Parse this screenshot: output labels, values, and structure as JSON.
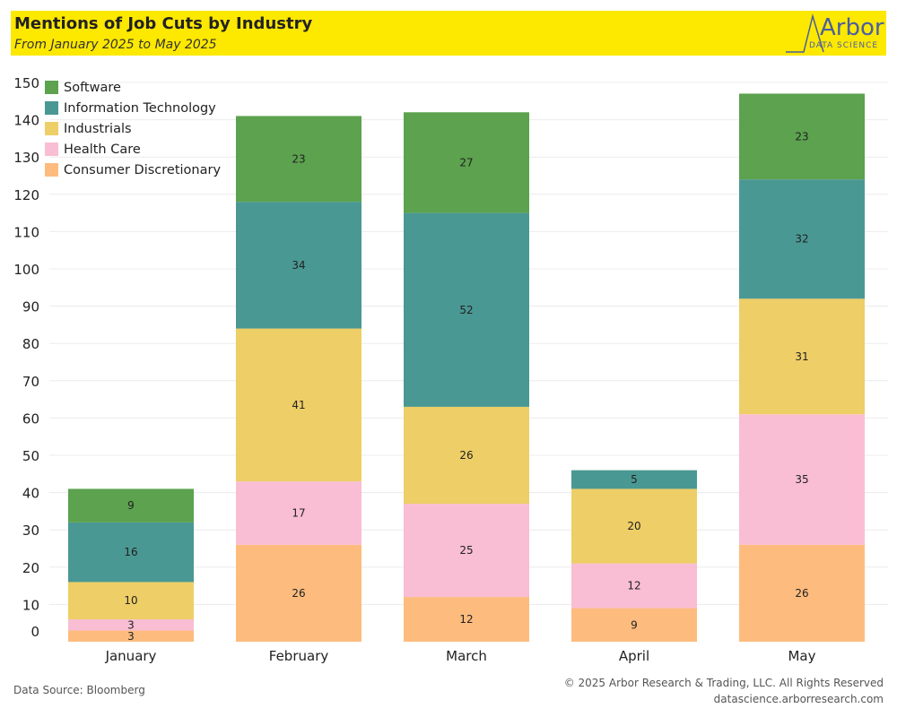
{
  "header": {
    "title": "Mentions of Job Cuts by Industry",
    "subtitle": "From January 2025 to May 2025",
    "logo_word": "Arbor",
    "logo_sub": "DATA SCIENCE",
    "background": "#fde800"
  },
  "footer": {
    "source": "Data Source: Bloomberg",
    "copyright": "© 2025 Arbor Research & Trading, LLC. All Rights Reserved",
    "website": "datascience.arborresearch.com"
  },
  "chart_data": {
    "type": "bar",
    "stacked": true,
    "categories": [
      "January",
      "February",
      "March",
      "April",
      "May"
    ],
    "series": [
      {
        "name": "Consumer Discretionary",
        "color": "#fdbc7e",
        "values": [
          3,
          26,
          12,
          9,
          26
        ]
      },
      {
        "name": "Health Care",
        "color": "#f9bed3",
        "values": [
          3,
          17,
          25,
          12,
          35
        ]
      },
      {
        "name": "Industrials",
        "color": "#eece66",
        "values": [
          10,
          41,
          26,
          20,
          31
        ]
      },
      {
        "name": "Information Technology",
        "color": "#4a9893",
        "values": [
          16,
          34,
          52,
          5,
          32
        ]
      },
      {
        "name": "Software",
        "color": "#5ca24f",
        "values": [
          9,
          23,
          27,
          null,
          23
        ]
      }
    ],
    "legend_order": [
      "Software",
      "Information Technology",
      "Industrials",
      "Health Care",
      "Consumer Discretionary"
    ],
    "yticks": [
      0,
      10,
      20,
      30,
      40,
      50,
      60,
      70,
      80,
      90,
      100,
      110,
      120,
      130,
      140,
      150
    ],
    "ylim": [
      0,
      150
    ],
    "grid": true,
    "legend_position": "top-left"
  }
}
